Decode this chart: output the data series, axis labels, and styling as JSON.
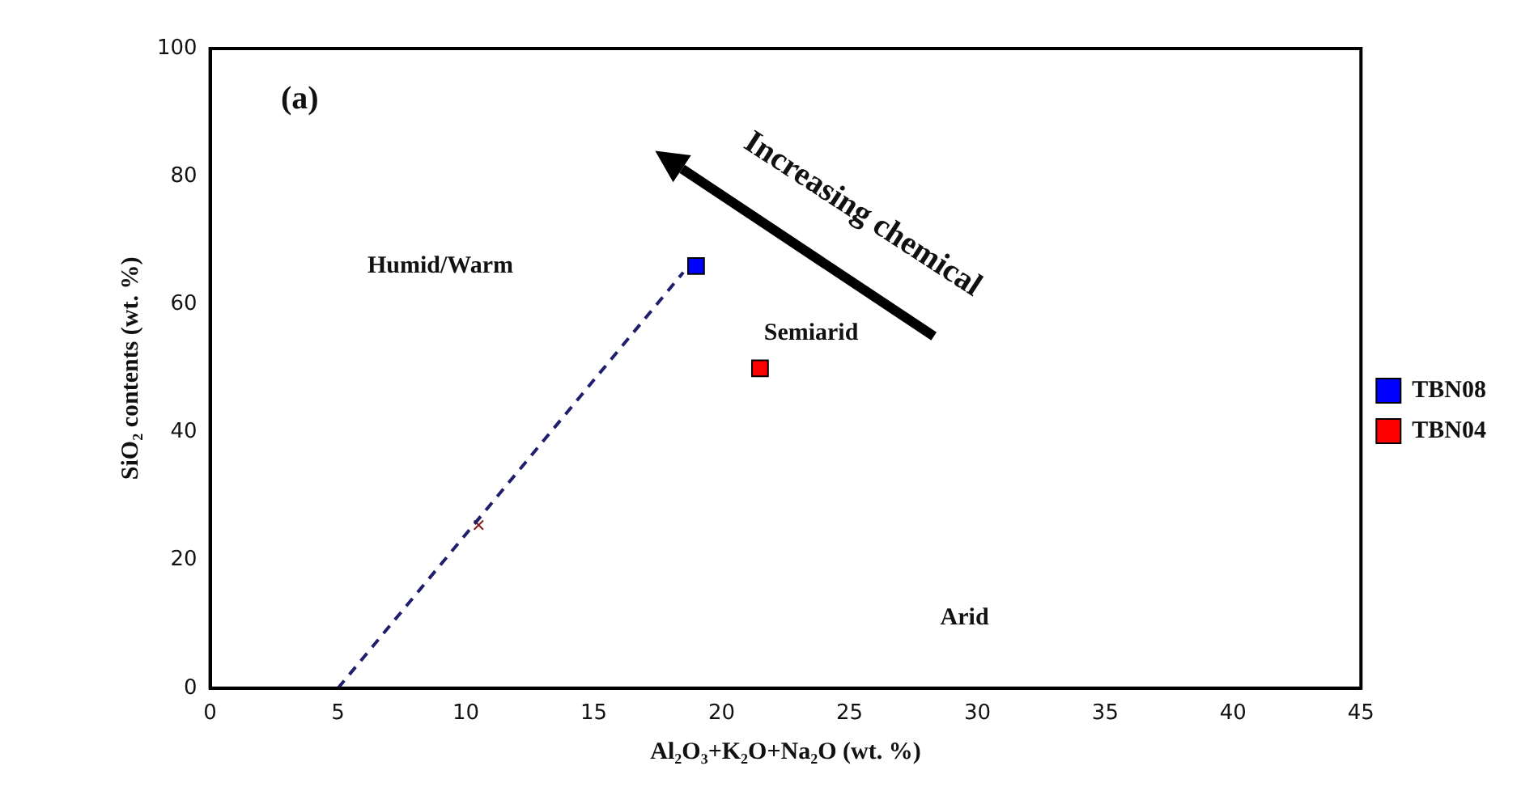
{
  "chart_data": {
    "type": "scatter",
    "xlabel": "Al₂O₃+K₂O+Na₂O (wt. %)",
    "ylabel": "SiO₂ contents (wt. %)",
    "series": [
      {
        "name": "TBN08",
        "color": "#0000ff",
        "x": [
          19
        ],
        "values": [
          66
        ],
        "marker": "square"
      },
      {
        "name": "TBN04",
        "color": "#ff0000",
        "x": [
          21.5
        ],
        "values": [
          50
        ],
        "marker": "square"
      },
      {
        "type": "line",
        "color": "#1f1f6e",
        "x": [
          5,
          18.5
        ],
        "values": [
          0,
          65
        ],
        "line_style": "dashed",
        "marker": "none"
      },
      {
        "color": "#8b1a1a",
        "x": [
          10.5
        ],
        "values": [
          25.5
        ],
        "marker": "cross"
      }
    ],
    "annotations": [
      "(a)",
      "Humid/Warm",
      "Semiarid",
      "Arid",
      "Increasing chemical"
    ],
    "xlim": [
      0,
      45
    ],
    "xticks": [
      0,
      5,
      10,
      15,
      20,
      25,
      30,
      35,
      40,
      45
    ],
    "ylim": [
      0,
      100
    ],
    "yticks": [
      0,
      20,
      40,
      60,
      80,
      100
    ],
    "grid": false,
    "legend": "right"
  }
}
